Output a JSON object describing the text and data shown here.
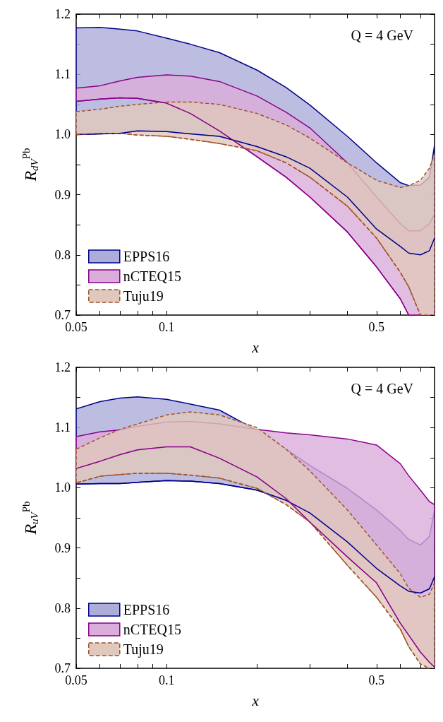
{
  "chart_data": [
    {
      "type": "line",
      "ylabel": "R$_{dV}$$^{Pb}$",
      "xlabel": "x",
      "annotations": [
        "Q = 4 GeV"
      ],
      "log": "x",
      "grid": false,
      "legend": "bottom left",
      "xlim": [
        0.05,
        0.78
      ],
      "xticks": [
        0.05,
        {
          "value": 0.06,
          "label": null
        },
        {
          "value": 0.07,
          "label": null
        },
        {
          "value": 0.08,
          "label": null
        },
        {
          "value": 0.09,
          "label": null
        },
        0.1,
        {
          "value": 0.2,
          "label": null
        },
        {
          "value": 0.3,
          "label": null
        },
        {
          "value": 0.4,
          "label": null
        },
        0.5,
        {
          "value": 0.6,
          "label": null
        },
        {
          "value": 0.7,
          "label": null
        }
      ],
      "ylim": [
        0.7,
        1.2
      ],
      "yticks": [
        0.7,
        {
          "value": 0.75,
          "label": null
        },
        0.8,
        {
          "value": 0.85,
          "label": null
        },
        0.9,
        {
          "value": 0.95,
          "label": null
        },
        {
          "value": 1,
          "label": "1.0"
        },
        {
          "value": 1.05,
          "label": null
        },
        1.1,
        {
          "value": 1.15,
          "label": null
        },
        1.2
      ],
      "x": [
        0.05,
        0.06,
        0.07,
        0.08,
        0.1,
        0.12,
        0.15,
        0.2,
        0.25,
        0.3,
        0.4,
        0.5,
        0.6,
        0.64,
        0.7,
        0.75,
        0.78
      ],
      "series": [
        {
          "name": "EPPS16",
          "color": "#00008b",
          "line_style": "solid",
          "upper": [
            1.177,
            1.178,
            1.175,
            1.172,
            1.16,
            1.15,
            1.136,
            1.107,
            1.078,
            1.049,
            0.997,
            0.953,
            0.92,
            0.915,
            0.916,
            0.929,
            0.982
          ],
          "lower": [
            1.0,
            1.001,
            1.002,
            1.006,
            1.005,
            1.001,
            0.997,
            0.98,
            0.963,
            0.944,
            0.896,
            0.843,
            0.814,
            0.803,
            0.8,
            0.807,
            0.828
          ],
          "values": [
            1.0,
            1.001,
            1.002,
            1.006,
            1.005,
            1.001,
            0.997,
            0.98,
            0.963,
            0.944,
            0.896,
            0.843,
            0.814,
            0.803,
            0.8,
            0.807,
            0.828
          ]
        },
        {
          "name": "nCTEQ15",
          "color": "#8b008b",
          "line_style": "solid",
          "upper": [
            1.077,
            1.081,
            1.089,
            1.095,
            1.099,
            1.097,
            1.088,
            1.064,
            1.037,
            1.011,
            0.953,
            0.896,
            0.852,
            0.84,
            0.84,
            0.852,
            0.867
          ],
          "lower": [
            1.055,
            1.059,
            1.061,
            1.06,
            1.052,
            1.035,
            1.006,
            0.963,
            0.929,
            0.896,
            0.838,
            0.78,
            0.727,
            0.7,
            0.7,
            0.7,
            0.7
          ],
          "values": [
            1.055,
            1.059,
            1.061,
            1.06,
            1.052,
            1.035,
            1.006,
            0.963,
            0.929,
            0.896,
            0.838,
            0.78,
            0.727,
            0.7,
            null,
            null,
            null
          ]
        },
        {
          "name": "Tuju19",
          "color": "#a0522d",
          "line_style": "dashed",
          "upper": [
            1.038,
            1.042,
            1.047,
            1.05,
            1.054,
            1.054,
            1.05,
            1.035,
            1.016,
            0.994,
            0.953,
            0.924,
            0.912,
            0.915,
            0.924,
            0.944,
            0.968
          ],
          "lower": [
            1.0,
            1.002,
            1.002,
            0.999,
            0.997,
            0.992,
            0.985,
            0.973,
            0.953,
            0.929,
            0.881,
            0.828,
            0.771,
            0.747,
            0.7,
            0.7,
            0.7
          ],
          "values": [
            1.0,
            1.002,
            1.002,
            0.999,
            0.997,
            0.992,
            0.985,
            0.973,
            0.953,
            0.929,
            0.881,
            0.828,
            0.771,
            0.747,
            0.7,
            null,
            null
          ]
        }
      ]
    },
    {
      "type": "line",
      "ylabel": "R$_{uV}$$^{Pb}$",
      "xlabel": "x",
      "annotations": [
        "Q = 4 GeV"
      ],
      "log": "x",
      "grid": false,
      "legend": "bottom left",
      "xlim": [
        0.05,
        0.78
      ],
      "xticks": [
        0.05,
        {
          "value": 0.06,
          "label": null
        },
        {
          "value": 0.07,
          "label": null
        },
        {
          "value": 0.08,
          "label": null
        },
        {
          "value": 0.09,
          "label": null
        },
        0.1,
        {
          "value": 0.2,
          "label": null
        },
        {
          "value": 0.3,
          "label": null
        },
        {
          "value": 0.4,
          "label": null
        },
        0.5,
        {
          "value": 0.6,
          "label": null
        },
        {
          "value": 0.7,
          "label": null
        }
      ],
      "ylim": [
        0.7,
        1.2
      ],
      "yticks": [
        0.7,
        {
          "value": 0.75,
          "label": null
        },
        0.8,
        {
          "value": 0.85,
          "label": null
        },
        0.9,
        {
          "value": 0.95,
          "label": null
        },
        {
          "value": 1,
          "label": "1.0"
        },
        {
          "value": 1.05,
          "label": null
        },
        1.1,
        {
          "value": 1.15,
          "label": null
        },
        1.2
      ],
      "x": [
        0.05,
        0.06,
        0.07,
        0.08,
        0.1,
        0.12,
        0.15,
        0.2,
        0.25,
        0.3,
        0.4,
        0.5,
        0.6,
        0.64,
        0.7,
        0.75,
        0.78
      ],
      "series": [
        {
          "name": "EPPS16",
          "color": "#00008b",
          "line_style": "solid",
          "upper": [
            1.131,
            1.143,
            1.149,
            1.151,
            1.147,
            1.139,
            1.129,
            1.095,
            1.064,
            1.037,
            0.999,
            0.963,
            0.929,
            0.914,
            0.905,
            0.919,
            0.963
          ],
          "lower": [
            1.006,
            1.007,
            1.007,
            1.009,
            1.012,
            1.011,
            1.007,
            0.996,
            0.979,
            0.958,
            0.91,
            0.866,
            0.837,
            0.828,
            0.825,
            0.832,
            0.852
          ],
          "values": [
            1.006,
            1.007,
            1.007,
            1.009,
            1.012,
            1.011,
            1.007,
            0.996,
            0.979,
            0.958,
            0.91,
            0.866,
            0.837,
            0.828,
            0.825,
            0.832,
            0.852
          ]
        },
        {
          "name": "nCTEQ15",
          "color": "#8b008b",
          "line_style": "solid",
          "upper": [
            1.085,
            1.093,
            1.096,
            1.102,
            1.109,
            1.11,
            1.106,
            1.097,
            1.091,
            1.088,
            1.081,
            1.071,
            1.04,
            1.02,
            0.996,
            0.977,
            0.972
          ],
          "lower": [
            1.032,
            1.044,
            1.055,
            1.063,
            1.068,
            1.068,
            1.049,
            1.018,
            0.982,
            0.943,
            0.885,
            0.842,
            0.775,
            0.755,
            0.727,
            0.71,
            0.702
          ],
          "values": [
            1.032,
            1.044,
            1.055,
            1.063,
            1.068,
            1.068,
            1.049,
            1.018,
            0.982,
            0.943,
            0.885,
            0.842,
            0.775,
            0.755,
            0.727,
            0.71,
            0.702
          ]
        },
        {
          "name": "Tuju19",
          "color": "#a0522d",
          "line_style": "dashed",
          "upper": [
            1.064,
            1.083,
            1.097,
            1.106,
            1.121,
            1.126,
            1.121,
            1.1,
            1.064,
            1.028,
            0.963,
            0.905,
            0.857,
            0.833,
            0.818,
            0.823,
            0.842
          ],
          "lower": [
            1.008,
            1.019,
            1.022,
            1.024,
            1.024,
            1.021,
            1.016,
            0.999,
            0.972,
            0.943,
            0.871,
            0.818,
            0.765,
            0.736,
            0.707,
            0.7,
            0.7
          ],
          "values": [
            1.008,
            1.019,
            1.022,
            1.024,
            1.024,
            1.021,
            1.016,
            0.999,
            0.972,
            0.943,
            0.871,
            0.818,
            0.765,
            0.736,
            0.707,
            null,
            null
          ]
        }
      ]
    }
  ]
}
